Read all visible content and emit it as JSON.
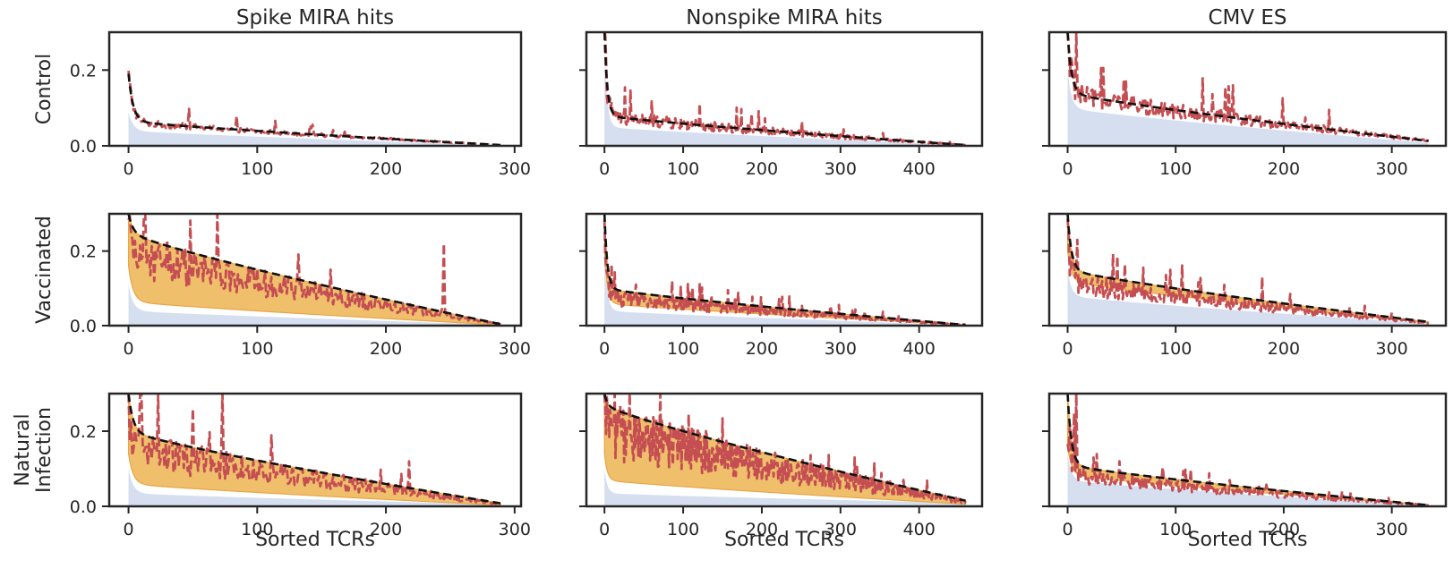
{
  "chart_data": {
    "type": "line",
    "figure_style": "3x3 grid of line/area plots, TCR abundance ratios sorted in descending order",
    "columns": [
      {
        "title": "Spike MIRA hits",
        "n": 290,
        "xticks": [
          0,
          100,
          200,
          300
        ],
        "xlim": [
          -15,
          305
        ]
      },
      {
        "title": "Nonspike MIRA hits",
        "n": 460,
        "xticks": [
          0,
          100,
          200,
          300,
          400
        ],
        "xlim": [
          -23,
          480
        ]
      },
      {
        "title": "CMV ES",
        "n": 335,
        "xticks": [
          0,
          100,
          200,
          300
        ],
        "xlim": [
          -17,
          350
        ]
      }
    ],
    "rows": [
      {
        "label_lines": [
          "Control"
        ],
        "has_orange_band": false
      },
      {
        "label_lines": [
          "Vaccinated"
        ],
        "has_orange_band": true
      },
      {
        "label_lines": [
          "Natural",
          "Infection"
        ],
        "has_orange_band": true
      }
    ],
    "ylim": [
      0,
      0.3
    ],
    "yticks": [
      0.0,
      0.2
    ],
    "ytick_labels": [
      "0.0",
      "0.2"
    ],
    "xlabel": "Sorted TCRs",
    "series": [
      {
        "name": "baseline (blue shaded area)",
        "color": "#d6dff0"
      },
      {
        "name": "expected (black dashed line)",
        "color": "#111111"
      },
      {
        "name": "range (orange band)",
        "color": "#efbf6c"
      },
      {
        "name": "observed (red dashed line)",
        "color": "#c44e52"
      }
    ],
    "panels": [
      {
        "row": 0,
        "col": 0,
        "n": 290,
        "y0": 0.19,
        "y10": 0.065,
        "yend": 0.002,
        "noise": 0.15,
        "blue0": 0.09,
        "blue10": 0.04,
        "lower0": null,
        "lower10": null,
        "lowerEnd": null,
        "spikes": []
      },
      {
        "row": 0,
        "col": 1,
        "n": 460,
        "y0": 0.3,
        "y10": 0.08,
        "yend": 0.002,
        "noise": 0.25,
        "blue0": 0.25,
        "blue10": 0.05,
        "lower0": null,
        "lower10": null,
        "lowerEnd": null,
        "spikes": [
          [
            20,
            0.085
          ]
        ]
      },
      {
        "row": 0,
        "col": 2,
        "n": 335,
        "y0": 0.3,
        "y10": 0.14,
        "yend": 0.013,
        "noise": 0.22,
        "blue0": 0.2,
        "blue10": 0.1,
        "lower0": null,
        "lower10": null,
        "lowerEnd": null,
        "spikes": []
      },
      {
        "row": 1,
        "col": 0,
        "n": 290,
        "y0": 0.3,
        "y10": 0.25,
        "yend": 0.004,
        "noise": 0.32,
        "blue0": 0.11,
        "blue10": 0.04,
        "lower0": 0.16,
        "lower10": 0.065,
        "lowerEnd": 0.002,
        "spikes": [
          [
            245,
            0.22
          ],
          [
            30,
            0.23
          ],
          [
            12,
            0.3
          ]
        ]
      },
      {
        "row": 1,
        "col": 1,
        "n": 460,
        "y0": 0.3,
        "y10": 0.1,
        "yend": 0.002,
        "noise": 0.3,
        "blue0": 0.2,
        "blue10": 0.04,
        "lower0": 0.2,
        "lower10": 0.06,
        "lowerEnd": 0.002,
        "spikes": [
          [
            40,
            0.11
          ]
        ]
      },
      {
        "row": 1,
        "col": 2,
        "n": 335,
        "y0": 0.3,
        "y10": 0.15,
        "yend": 0.01,
        "noise": 0.28,
        "blue0": 0.15,
        "blue10": 0.08,
        "lower0": 0.2,
        "lower10": 0.12,
        "lowerEnd": 0.008,
        "spikes": [
          [
            95,
            0.15
          ],
          [
            180,
            0.13
          ],
          [
            40,
            0.13
          ]
        ]
      },
      {
        "row": 2,
        "col": 0,
        "n": 290,
        "y0": 0.3,
        "y10": 0.2,
        "yend": 0.008,
        "noise": 0.35,
        "blue0": 0.1,
        "blue10": 0.035,
        "lower0": 0.14,
        "lower10": 0.06,
        "lowerEnd": 0.003,
        "spikes": [
          [
            50,
            0.26
          ],
          [
            73,
            0.3
          ],
          [
            218,
            0.12
          ],
          [
            10,
            0.3
          ]
        ]
      },
      {
        "row": 2,
        "col": 1,
        "n": 460,
        "y0": 0.3,
        "y10": 0.27,
        "yend": 0.015,
        "noise": 0.4,
        "blue0": 0.1,
        "blue10": 0.035,
        "lower0": 0.14,
        "lower10": 0.07,
        "lowerEnd": 0.006,
        "spikes": [
          [
            32,
            0.3
          ],
          [
            160,
            0.16
          ],
          [
            170,
            0.12
          ]
        ]
      },
      {
        "row": 2,
        "col": 2,
        "n": 335,
        "y0": 0.3,
        "y10": 0.11,
        "yend": 0.003,
        "noise": 0.3,
        "blue0": 0.14,
        "blue10": 0.07,
        "lower0": 0.16,
        "lower10": 0.085,
        "lowerEnd": 0.003,
        "spikes": [
          [
            8,
            0.3
          ],
          [
            48,
            0.12
          ],
          [
            150,
            0.07
          ]
        ]
      }
    ]
  }
}
